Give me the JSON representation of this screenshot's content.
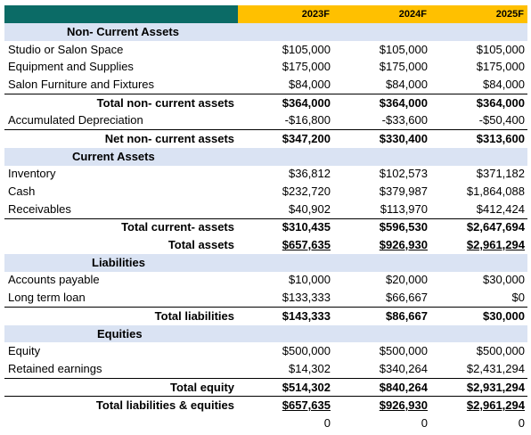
{
  "columns": [
    "2023F",
    "2024F",
    "2025F"
  ],
  "colors": {
    "header_left": "#0b6b66",
    "header_years": "#ffc000",
    "section_band": "#dae3f3"
  },
  "rows": [
    {
      "type": "section",
      "label": "Non- Current Assets"
    },
    {
      "type": "line",
      "label": "Studio or Salon Space",
      "values": [
        "$105,000",
        "$105,000",
        "$105,000"
      ]
    },
    {
      "type": "line",
      "label": "Equipment and Supplies",
      "values": [
        "$175,000",
        "$175,000",
        "$175,000"
      ]
    },
    {
      "type": "line",
      "label": "Salon Furniture and Fixtures",
      "values": [
        "$84,000",
        "$84,000",
        "$84,000"
      ]
    },
    {
      "type": "total",
      "label": "Total non- current assets",
      "values": [
        "$364,000",
        "$364,000",
        "$364,000"
      ]
    },
    {
      "type": "line",
      "label": "Accumulated Depreciation",
      "values": [
        "-$16,800",
        "-$33,600",
        "-$50,400"
      ]
    },
    {
      "type": "total",
      "label": "Net non- current assets",
      "values": [
        "$347,200",
        "$330,400",
        "$313,600"
      ]
    },
    {
      "type": "section",
      "label": "Current Assets"
    },
    {
      "type": "line",
      "label": "Inventory",
      "values": [
        "$36,812",
        "$102,573",
        "$371,182"
      ]
    },
    {
      "type": "line",
      "label": "Cash",
      "values": [
        "$232,720",
        "$379,987",
        "$1,864,088"
      ]
    },
    {
      "type": "line",
      "label": "Receivables",
      "values": [
        "$40,902",
        "$113,970",
        "$412,424"
      ]
    },
    {
      "type": "total",
      "label": "Total current- assets",
      "values": [
        "$310,435",
        "$596,530",
        "$2,647,694"
      ]
    },
    {
      "type": "total",
      "label": "Total assets",
      "values": [
        "$657,635",
        "$926,930",
        "$2,961,294"
      ]
    },
    {
      "type": "section",
      "label": "Liabilities"
    },
    {
      "type": "line",
      "label": "Accounts payable",
      "values": [
        "$10,000",
        "$20,000",
        "$30,000"
      ]
    },
    {
      "type": "line",
      "label": "Long term loan",
      "values": [
        "$133,333",
        "$66,667",
        "$0"
      ]
    },
    {
      "type": "total",
      "label": "Total liabilities",
      "values": [
        "$143,333",
        "$86,667",
        "$30,000"
      ]
    },
    {
      "type": "section",
      "label": "Equities"
    },
    {
      "type": "line",
      "label": "Equity",
      "values": [
        "$500,000",
        "$500,000",
        "$500,000"
      ]
    },
    {
      "type": "line",
      "label": "Retained earnings",
      "values": [
        "$14,302",
        "$340,264",
        "$2,431,294"
      ]
    },
    {
      "type": "total",
      "label": "Total equity",
      "values": [
        "$514,302",
        "$840,264",
        "$2,931,294"
      ]
    },
    {
      "type": "total",
      "label": "Total liabilities & equities",
      "values": [
        "$657,635",
        "$926,930",
        "$2,961,294"
      ]
    },
    {
      "type": "line",
      "label": "",
      "values": [
        "0",
        "0",
        "0"
      ]
    }
  ]
}
